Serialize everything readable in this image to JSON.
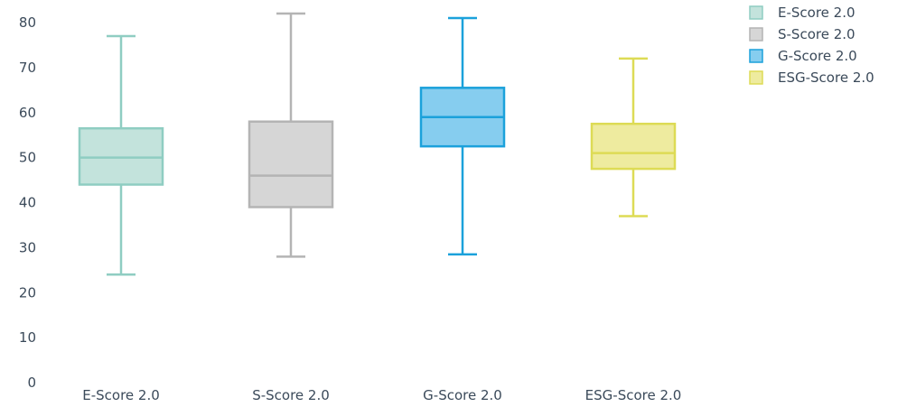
{
  "chart_data": {
    "type": "box",
    "title": "",
    "xlabel": "",
    "ylabel": "",
    "ylim": [
      0,
      80
    ],
    "y_ticks": [
      "0",
      "10",
      "20",
      "30",
      "40",
      "50",
      "60",
      "70",
      "80"
    ],
    "grid": false,
    "legend_position": "top-right",
    "categories": [
      "E-Score 2.0",
      "S-Score 2.0",
      "G-Score 2.0",
      "ESG-Score 2.0"
    ],
    "series": [
      {
        "name": "E-Score 2.0",
        "min": 24,
        "q1": 44,
        "median": 50,
        "q3": 56.5,
        "max": 77,
        "fill": "#c3e3dc",
        "stroke": "#8fcdc2"
      },
      {
        "name": "S-Score 2.0",
        "min": 28,
        "q1": 39,
        "median": 46,
        "q3": 58,
        "max": 82,
        "fill": "#d6d6d6",
        "stroke": "#b4b4b4"
      },
      {
        "name": "G-Score 2.0",
        "min": 28.5,
        "q1": 52.5,
        "median": 59,
        "q3": 65.5,
        "max": 81,
        "fill": "#86cdef",
        "stroke": "#1ba1db"
      },
      {
        "name": "ESG-Score 2.0",
        "min": 37,
        "q1": 47.5,
        "median": 51,
        "q3": 57.5,
        "max": 72,
        "fill": "#eeeb9f",
        "stroke": "#dddb55"
      }
    ]
  }
}
